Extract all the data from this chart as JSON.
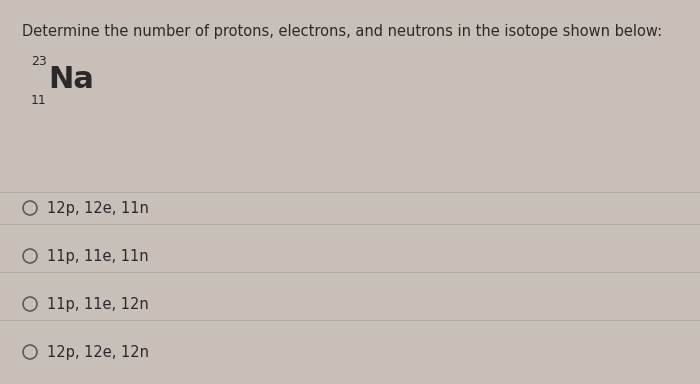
{
  "title": "Determine the number of protons, electrons, and neutrons in the isotope shown below:",
  "title_fontsize": 10.5,
  "title_color": "#2a2a2a",
  "background_color": "#c8c0b8",
  "panel_color": "#ddd8d0",
  "element_symbol": "Na",
  "mass_number": "23",
  "atomic_number": "11",
  "element_fontsize": 22,
  "script_fontsize": 9,
  "options": [
    "12p, 12e, 11n",
    "11p, 11e, 11n",
    "11p, 11e, 12n",
    "12p, 12e, 12n"
  ],
  "option_fontsize": 10.5,
  "option_color": "#2a2a2a",
  "divider_color": "#b0aaa4",
  "circle_color": "#555555",
  "circle_lw": 1.1
}
